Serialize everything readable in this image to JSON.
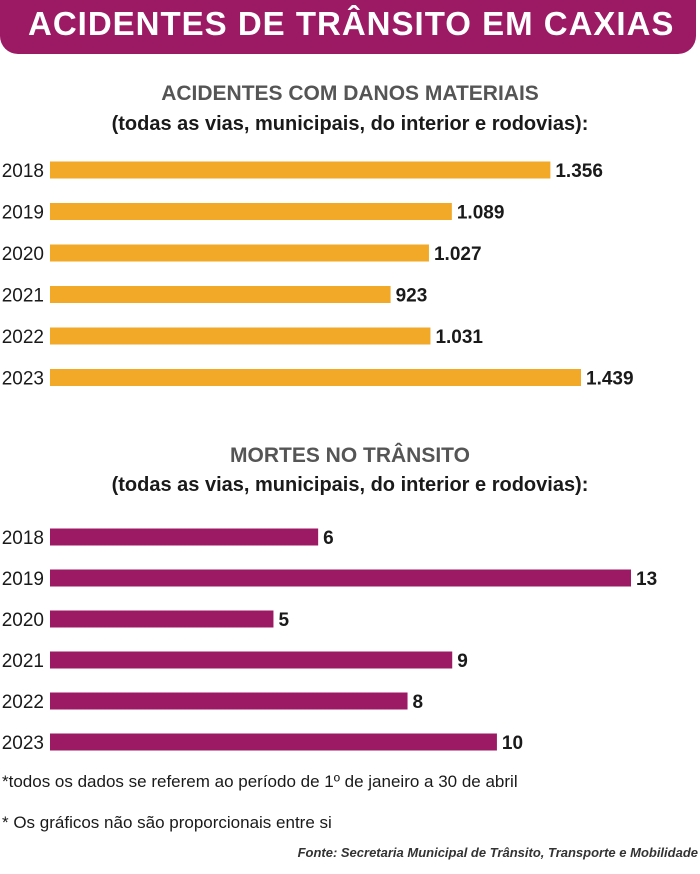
{
  "header": {
    "title": "ACIDENTES DE TRÂNSITO EM CAXIAS"
  },
  "colors": {
    "banner": "#9c1a64",
    "accidents_bar": "#f2a928",
    "deaths_bar": "#9c1a64"
  },
  "chart_data": [
    {
      "type": "bar",
      "orientation": "horizontal",
      "title": "ACIDENTES COM DANOS MATERIAIS",
      "subtitle": "(todas as vias, municipais, do interior e rodovias):",
      "categories": [
        "2018",
        "2019",
        "2020",
        "2021",
        "2022",
        "2023"
      ],
      "values": [
        1356,
        1089,
        1027,
        923,
        1031,
        1439
      ],
      "value_labels": [
        "1.356",
        "1.089",
        "1.027",
        "923",
        "1.031",
        "1.439"
      ],
      "color": "#f2a928"
    },
    {
      "type": "bar",
      "orientation": "horizontal",
      "title": "MORTES NO TRÂNSITO",
      "subtitle": "(todas as vias, municipais, do interior e rodovias):",
      "categories": [
        "2018",
        "2019",
        "2020",
        "2021",
        "2022",
        "2023"
      ],
      "values": [
        6,
        13,
        5,
        9,
        8,
        10
      ],
      "value_labels": [
        "6",
        "13",
        "5",
        "9",
        "8",
        "10"
      ],
      "color": "#9c1a64"
    }
  ],
  "footnotes": {
    "note1": "*todos os dados se referem ao período de 1º de janeiro a 30 de abril",
    "note2": "* Os gráficos não são proporcionais entre si",
    "source": "Fonte: Secretaria Municipal de Trânsito, Transporte e Mobilidade"
  }
}
